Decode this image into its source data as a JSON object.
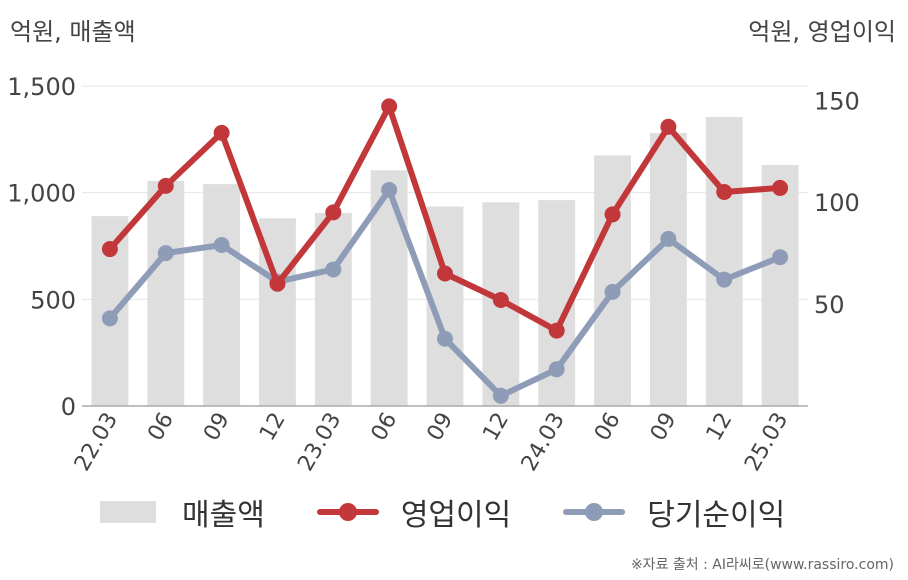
{
  "header": {
    "left_unit": "억원, 매출액",
    "right_unit": "억원, 영업이익"
  },
  "legend": {
    "revenue": "매출액",
    "operating_profit": "영업이익",
    "net_income": "당기순이익"
  },
  "source": "※자료 출처 : AI라씨로(www.rassiro.com)",
  "colors": {
    "revenue": "#dedede",
    "operating_profit": "#c2383a",
    "net_income": "#8e9cb8",
    "grid": "#e6e6e6",
    "axis": "#aaaaaa",
    "tick_text": "#444444"
  },
  "chart_data": {
    "type": "bar+line",
    "categories": [
      "22.03",
      "06",
      "09",
      "12",
      "23.03",
      "06",
      "09",
      "12",
      "24.03",
      "06",
      "09",
      "12",
      "25.03"
    ],
    "left_axis": {
      "ylim": [
        0,
        1500
      ],
      "ticks": [
        0,
        500,
        1000,
        1500
      ],
      "tick_labels": [
        "0",
        "500",
        "1,000",
        "1,500"
      ]
    },
    "right_axis": {
      "ylim": [
        0,
        157
      ],
      "ticks": [
        50,
        100,
        150
      ],
      "tick_labels": [
        "50",
        "100",
        "150"
      ]
    },
    "series": [
      {
        "name": "매출액",
        "kind": "bar",
        "axis": "left",
        "values": [
          890,
          1055,
          1040,
          880,
          905,
          1105,
          935,
          955,
          965,
          1175,
          1280,
          1355,
          1130
        ]
      },
      {
        "name": "영업이익",
        "kind": "line",
        "axis": "right",
        "values": [
          77,
          108,
          134,
          60,
          95,
          147,
          65,
          52,
          37,
          94,
          137,
          105,
          107
        ]
      },
      {
        "name": "당기순이익",
        "kind": "line",
        "axis": "right",
        "values": [
          43,
          75,
          79,
          61,
          67,
          106,
          33,
          5,
          18,
          56,
          82,
          62,
          73
        ]
      }
    ],
    "grid": true,
    "legend_position": "bottom"
  }
}
